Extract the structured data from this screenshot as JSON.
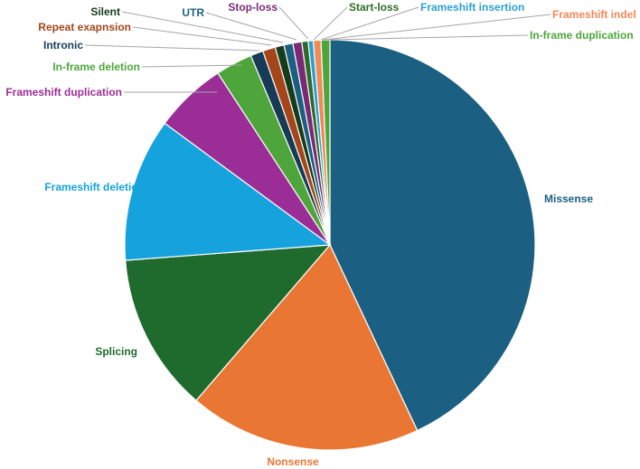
{
  "chart_data": {
    "type": "pie",
    "title": "",
    "start_angle_deg": 0,
    "direction": "clockwise",
    "slices": [
      {
        "label": "Missense",
        "value": 43.0,
        "color": "#1b5f82",
        "label_color": "#1b5f82"
      },
      {
        "label": "Nonsense",
        "value": 18.3,
        "color": "#e97733",
        "label_color": "#e97733"
      },
      {
        "label": "Splicing",
        "value": 12.5,
        "color": "#1f6b2d",
        "label_color": "#1f6b2d"
      },
      {
        "label": "Frameshift deletion",
        "value": 11.3,
        "color": "#16a2dd",
        "label_color": "#16a2dd"
      },
      {
        "label": "Frameshift duplication",
        "value": 5.7,
        "color": "#9b2d97",
        "label_color": "#9b2d97"
      },
      {
        "label": "In-frame deletion",
        "value": 2.9,
        "color": "#4ea53b",
        "label_color": "#4ea53b"
      },
      {
        "label": "Intronic",
        "value": 1.0,
        "color": "#173b57",
        "label_color": "#173b57"
      },
      {
        "label": "Repeat exapnsion",
        "value": 1.0,
        "color": "#a4461a",
        "label_color": "#a4461a"
      },
      {
        "label": "Silent",
        "value": 0.7,
        "color": "#173c1b",
        "label_color": "#173c1b"
      },
      {
        "label": "UTR",
        "value": 0.7,
        "color": "#1b5f82",
        "label_color": "#1b5f82"
      },
      {
        "label": "Stop-loss",
        "value": 0.7,
        "color": "#7a2a75",
        "label_color": "#7a2a75"
      },
      {
        "label": "Start-loss",
        "value": 0.5,
        "color": "#2e6b28",
        "label_color": "#2e6b28"
      },
      {
        "label": "Frameshift insertion",
        "value": 0.4,
        "color": "#2d9fd3",
        "label_color": "#2d9fd3"
      },
      {
        "label": "Frameshift indel",
        "value": 0.6,
        "color": "#f08a56",
        "label_color": "#f08a56"
      },
      {
        "label": "In-frame duplication",
        "value": 0.7,
        "color": "#4ea53b",
        "label_color": "#4ea53b"
      }
    ]
  }
}
